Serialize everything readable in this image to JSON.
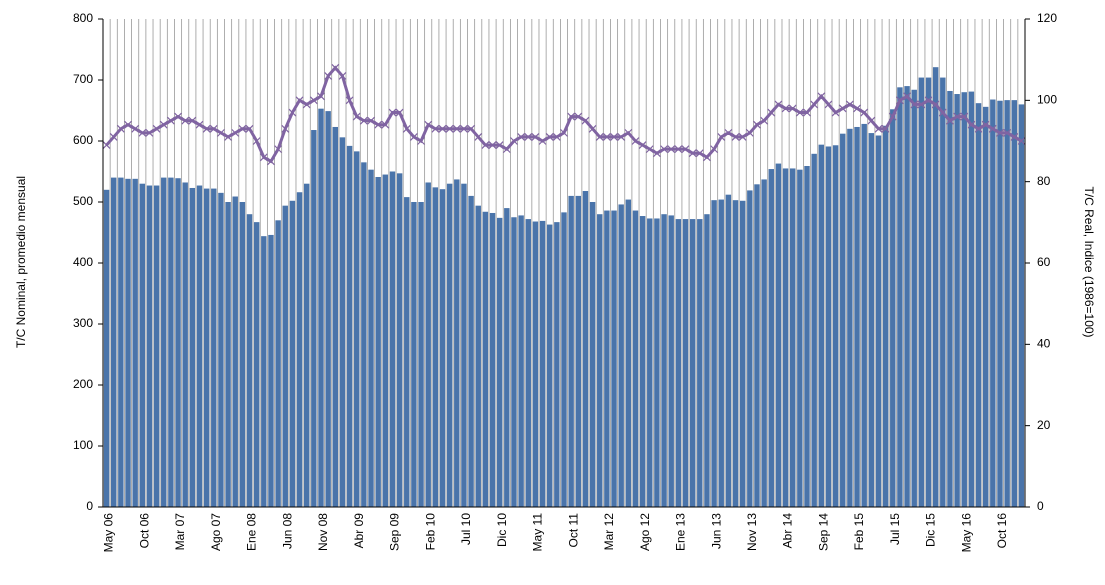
{
  "chart_data": {
    "type": "bar",
    "y_label": "T/C Nominal, promedio mensual",
    "y2_label": "T/C Real, Indice (1986=100)",
    "categories": [
      "May 06",
      null,
      null,
      null,
      null,
      "Oct 06",
      null,
      null,
      null,
      null,
      "Mar 07",
      null,
      null,
      null,
      null,
      "Ago 07",
      null,
      null,
      null,
      null,
      "Ene 08",
      null,
      null,
      null,
      null,
      "Jun 08",
      null,
      null,
      null,
      null,
      "Nov 08",
      null,
      null,
      null,
      null,
      "Abr 09",
      null,
      null,
      null,
      null,
      "Sep 09",
      null,
      null,
      null,
      null,
      "Feb 10",
      null,
      null,
      null,
      null,
      "Jul 10",
      null,
      null,
      null,
      null,
      "Dic 10",
      null,
      null,
      null,
      null,
      "May 11",
      null,
      null,
      null,
      null,
      "Oct 11",
      null,
      null,
      null,
      null,
      "Mar 12",
      null,
      null,
      null,
      null,
      "Ago 12",
      null,
      null,
      null,
      null,
      "Ene 13",
      null,
      null,
      null,
      null,
      "Jun 13",
      null,
      null,
      null,
      null,
      "Nov 13",
      null,
      null,
      null,
      null,
      "Abr 14",
      null,
      null,
      null,
      null,
      "Sep 14",
      null,
      null,
      null,
      null,
      "Feb 15",
      null,
      null,
      null,
      null,
      "Jul 15",
      null,
      null,
      null,
      null,
      "Dic 15",
      null,
      null,
      null,
      null,
      "May 16",
      null,
      null,
      null,
      null,
      "Oct 16",
      null,
      null,
      null
    ],
    "series": [
      {
        "type": "bar",
        "color": "#4a74aa",
        "values": [
          520,
          540,
          540,
          538,
          538,
          530,
          527,
          527,
          540,
          540,
          539,
          532,
          523,
          527,
          522,
          522,
          515,
          500,
          509,
          500,
          480,
          467,
          444,
          446,
          470,
          494,
          502,
          516,
          530,
          618,
          653,
          649,
          623,
          606,
          592,
          583,
          565,
          553,
          541,
          545,
          550,
          547,
          508,
          500,
          500,
          532,
          524,
          521,
          530,
          537,
          530,
          510,
          494,
          484,
          482,
          474,
          490,
          475,
          478,
          472,
          468,
          469,
          463,
          467,
          483,
          510,
          510,
          518,
          500,
          480,
          486,
          486,
          496,
          504,
          486,
          477,
          473,
          473,
          480,
          478,
          472,
          472,
          472,
          472,
          480,
          503,
          504,
          512,
          503,
          502,
          519,
          529,
          537,
          554,
          563,
          555,
          555,
          553,
          559,
          579,
          594,
          591,
          593,
          612,
          620,
          623,
          628,
          613,
          609,
          625,
          652,
          688,
          690,
          684,
          704,
          704,
          721,
          704,
          682,
          677,
          680,
          681,
          662,
          656,
          668,
          666,
          667,
          667,
          660
        ]
      },
      {
        "type": "line",
        "axis": "y2",
        "color": "#8064a2",
        "values": [
          89,
          91,
          93,
          94,
          93,
          92,
          92,
          93,
          94,
          95,
          96,
          95,
          95,
          94,
          93,
          93,
          92,
          91,
          92,
          93,
          93,
          90,
          86,
          85,
          88,
          93,
          97,
          100,
          99,
          100,
          101,
          106,
          108,
          106,
          100,
          96,
          95,
          95,
          94,
          94,
          97,
          97,
          93,
          91,
          90,
          94,
          93,
          93,
          93,
          93,
          93,
          93,
          91,
          89,
          89,
          89,
          88,
          90,
          91,
          91,
          91,
          90,
          91,
          91,
          92,
          96,
          96,
          95,
          93,
          91,
          91,
          91,
          91,
          92,
          90,
          89,
          88,
          87,
          88,
          88,
          88,
          88,
          87,
          87,
          86,
          88,
          91,
          92,
          91,
          91,
          92,
          94,
          95,
          97,
          99,
          98,
          98,
          97,
          97,
          99,
          101,
          99,
          97,
          98,
          99,
          98,
          97,
          95,
          93,
          93,
          96,
          100,
          101,
          99,
          99,
          100,
          99,
          97,
          95,
          96,
          96,
          94,
          93,
          94,
          93,
          92,
          92,
          91,
          90
        ]
      }
    ],
    "ylim": [
      0,
      800
    ],
    "yticks": [
      0,
      100,
      200,
      300,
      400,
      500,
      600,
      700,
      800
    ],
    "y2lim": [
      0,
      120
    ],
    "y2ticks": [
      0,
      20,
      40,
      60,
      80,
      100,
      120
    ]
  }
}
